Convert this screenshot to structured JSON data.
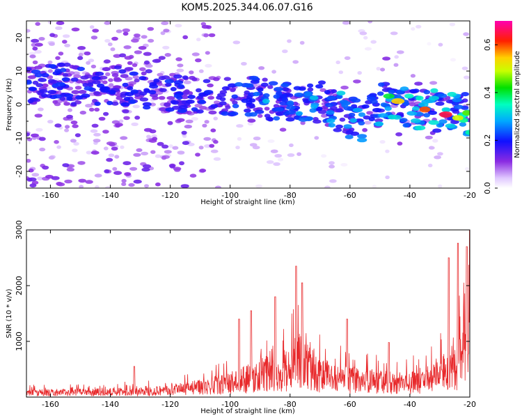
{
  "title": "KOM5.2025.344.06.07.G16",
  "chart_data": [
    {
      "type": "heatmap",
      "name": "spectrogram",
      "xlabel": "Height of straight line (km)",
      "ylabel": "Frequency (Hz)",
      "xlim": [
        -168,
        -20
      ],
      "ylim": [
        -25,
        25
      ],
      "xticks": [
        -160,
        -140,
        -120,
        -100,
        -80,
        -60,
        -40,
        -20
      ],
      "yticks": [
        -20,
        -10,
        0,
        10,
        20
      ],
      "ridge": [
        {
          "x": -140,
          "y": 6
        },
        {
          "x": -120,
          "y": 3
        },
        {
          "x": -100,
          "y": 2
        },
        {
          "x": -90,
          "y": 2
        },
        {
          "x": -80,
          "y": 0
        },
        {
          "x": -70,
          "y": 1
        },
        {
          "x": -60,
          "y": -4
        },
        {
          "x": -55,
          "y": -5
        },
        {
          "x": -48,
          "y": 2
        },
        {
          "x": -40,
          "y": -1
        },
        {
          "x": -30,
          "y": -2
        },
        {
          "x": -20,
          "y": -3
        }
      ],
      "hotspots": [
        {
          "x": -44,
          "y": 1,
          "v": 0.55
        },
        {
          "x": -35,
          "y": -1.5,
          "v": 0.6
        },
        {
          "x": -28,
          "y": -3,
          "v": 0.65
        },
        {
          "x": -24,
          "y": -4,
          "v": 0.5
        },
        {
          "x": -21,
          "y": -2.5,
          "v": 0.45
        },
        {
          "x": -47,
          "y": 2.5,
          "v": 0.4
        },
        {
          "x": -88,
          "y": 1,
          "v": 0.3
        },
        {
          "x": -72,
          "y": 2,
          "v": 0.3
        }
      ],
      "colorbar": {
        "label": "Normalized spectral amplitude",
        "range": [
          0,
          0.7
        ],
        "ticks": [
          0.0,
          0.2,
          0.4,
          0.6
        ]
      }
    },
    {
      "type": "line",
      "name": "snr",
      "color": "#e8292b",
      "xlabel": "Height of straight line (km)",
      "ylabel": "SNR (10 * v/v)",
      "xlim": [
        -168,
        -20
      ],
      "ylim": [
        0,
        3000
      ],
      "xticks": [
        -160,
        -140,
        -120,
        -100,
        -80,
        -60,
        -40,
        -20
      ],
      "yticks": [
        1000,
        2000,
        3000
      ],
      "envelope": [
        {
          "x": -168,
          "y": 130
        },
        {
          "x": -140,
          "y": 150
        },
        {
          "x": -120,
          "y": 210
        },
        {
          "x": -110,
          "y": 300
        },
        {
          "x": -100,
          "y": 420
        },
        {
          "x": -90,
          "y": 650
        },
        {
          "x": -80,
          "y": 850
        },
        {
          "x": -76,
          "y": 1200
        },
        {
          "x": -70,
          "y": 650
        },
        {
          "x": -60,
          "y": 520
        },
        {
          "x": -50,
          "y": 450
        },
        {
          "x": -40,
          "y": 430
        },
        {
          "x": -35,
          "y": 520
        },
        {
          "x": -30,
          "y": 700
        },
        {
          "x": -25,
          "y": 950
        },
        {
          "x": -22,
          "y": 1300
        },
        {
          "x": -20,
          "y": 1600
        }
      ],
      "peaks": [
        {
          "x": -132,
          "y": 550
        },
        {
          "x": -97,
          "y": 1400
        },
        {
          "x": -93,
          "y": 1550
        },
        {
          "x": -85,
          "y": 1800
        },
        {
          "x": -78,
          "y": 2350
        },
        {
          "x": -76,
          "y": 2050
        },
        {
          "x": -61,
          "y": 1400
        },
        {
          "x": -47,
          "y": 980
        },
        {
          "x": -27,
          "y": 2500
        },
        {
          "x": -24,
          "y": 2760
        },
        {
          "x": -21,
          "y": 2700
        },
        {
          "x": -20,
          "y": 3000
        }
      ]
    }
  ]
}
